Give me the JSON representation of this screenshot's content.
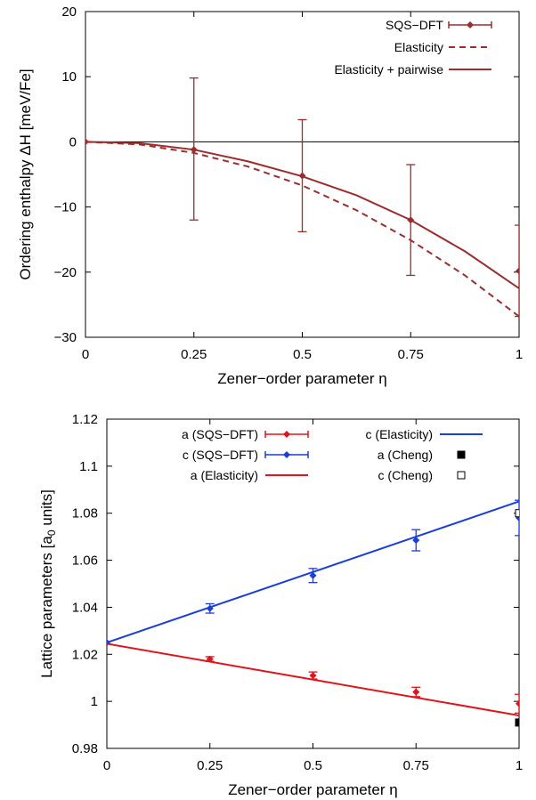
{
  "chart_data": [
    {
      "type": "line",
      "title": "",
      "xlabel": "Zener−order parameter η",
      "ylabel": "Ordering enthalpy ΔH [meV/Fe]",
      "xlim": [
        0,
        1
      ],
      "ylim": [
        -30,
        20
      ],
      "xticks": [
        0,
        0.25,
        0.5,
        0.75,
        1
      ],
      "xtick_labels": [
        "0",
        "0.25",
        "0.5",
        "0.75",
        "1"
      ],
      "yticks": [
        -30,
        -20,
        -10,
        0,
        10,
        20
      ],
      "ytick_labels": [
        "−30",
        "−20",
        "−10",
        "0",
        "10",
        "20"
      ],
      "zero_line": true,
      "grid": false,
      "legend_position": "top-right",
      "series": [
        {
          "name": "SQS−DFT",
          "kind": "points-errorbars",
          "color": "#9b2d2d",
          "x": [
            0,
            0.25,
            0.5,
            0.75,
            1
          ],
          "y": [
            0,
            -1.2,
            -5.2,
            -12.0,
            -19.8
          ],
          "yerr_low": [
            0,
            10.8,
            8.6,
            8.5,
            7.0
          ],
          "yerr_high": [
            0,
            11.0,
            8.6,
            8.5,
            7.0
          ]
        },
        {
          "name": "Elasticity",
          "kind": "dashed-line",
          "color": "#9b2d2d",
          "x": [
            0,
            0.125,
            0.25,
            0.375,
            0.5,
            0.625,
            0.75,
            0.875,
            1
          ],
          "y": [
            0,
            -0.4,
            -1.7,
            -3.8,
            -6.7,
            -10.5,
            -15.1,
            -20.5,
            -26.8
          ]
        },
        {
          "name": "Elasticity + pairwise",
          "kind": "solid-line",
          "color": "#9b2d2d",
          "x": [
            0,
            0.125,
            0.25,
            0.375,
            0.5,
            0.625,
            0.75,
            0.875,
            1
          ],
          "y": [
            0,
            -0.2,
            -1.2,
            -3.0,
            -5.3,
            -8.2,
            -12.0,
            -16.8,
            -22.5
          ]
        }
      ]
    },
    {
      "type": "line",
      "title": "",
      "xlabel": "Zener−order parameter η",
      "ylabel": "Lattice parameters [a",
      "ylabel_sub": "0",
      "ylabel_tail": " units]",
      "xlim": [
        0,
        1
      ],
      "ylim": [
        0.98,
        1.12
      ],
      "xticks": [
        0,
        0.25,
        0.5,
        0.75,
        1
      ],
      "xtick_labels": [
        "0",
        "0.25",
        "0.5",
        "0.75",
        "1"
      ],
      "yticks": [
        0.98,
        1.0,
        1.02,
        1.04,
        1.06,
        1.08,
        1.1,
        1.12
      ],
      "ytick_labels": [
        "0.98",
        "1",
        "1.02",
        "1.04",
        "1.06",
        "1.08",
        "1.1",
        "1.12"
      ],
      "grid": false,
      "legend_position": "top",
      "series": [
        {
          "name": "a (SQS−DFT)",
          "kind": "points-errorbars",
          "color": "#e0141a",
          "x": [
            0,
            0.25,
            0.5,
            0.75,
            1
          ],
          "y": [
            1.025,
            1.018,
            1.011,
            1.004,
            0.999
          ],
          "yerr": [
            0,
            0.001,
            0.0015,
            0.002,
            0.004
          ]
        },
        {
          "name": "c (SQS−DFT)",
          "kind": "points-errorbars",
          "color": "#1a3fd6",
          "x": [
            0,
            0.25,
            0.5,
            0.75,
            1
          ],
          "y": [
            1.025,
            1.0395,
            1.0535,
            1.0685,
            1.078
          ],
          "yerr": [
            0,
            0.002,
            0.003,
            0.0045,
            0.0075
          ]
        },
        {
          "name": "a (Elasticity)",
          "kind": "solid-line",
          "color": "#e0141a",
          "x": [
            0,
            1
          ],
          "y": [
            1.0245,
            0.994
          ]
        },
        {
          "name": "c (Elasticity)",
          "kind": "solid-line",
          "color": "#1a3fd6",
          "x": [
            0,
            1
          ],
          "y": [
            1.025,
            1.085
          ]
        },
        {
          "name": "a (Cheng)",
          "kind": "filled-square",
          "color": "#000000",
          "x": [
            1
          ],
          "y": [
            0.991
          ]
        },
        {
          "name": "c (Cheng)",
          "kind": "open-square",
          "color": "#000000",
          "x": [
            1
          ],
          "y": [
            1.08
          ]
        }
      ]
    }
  ]
}
